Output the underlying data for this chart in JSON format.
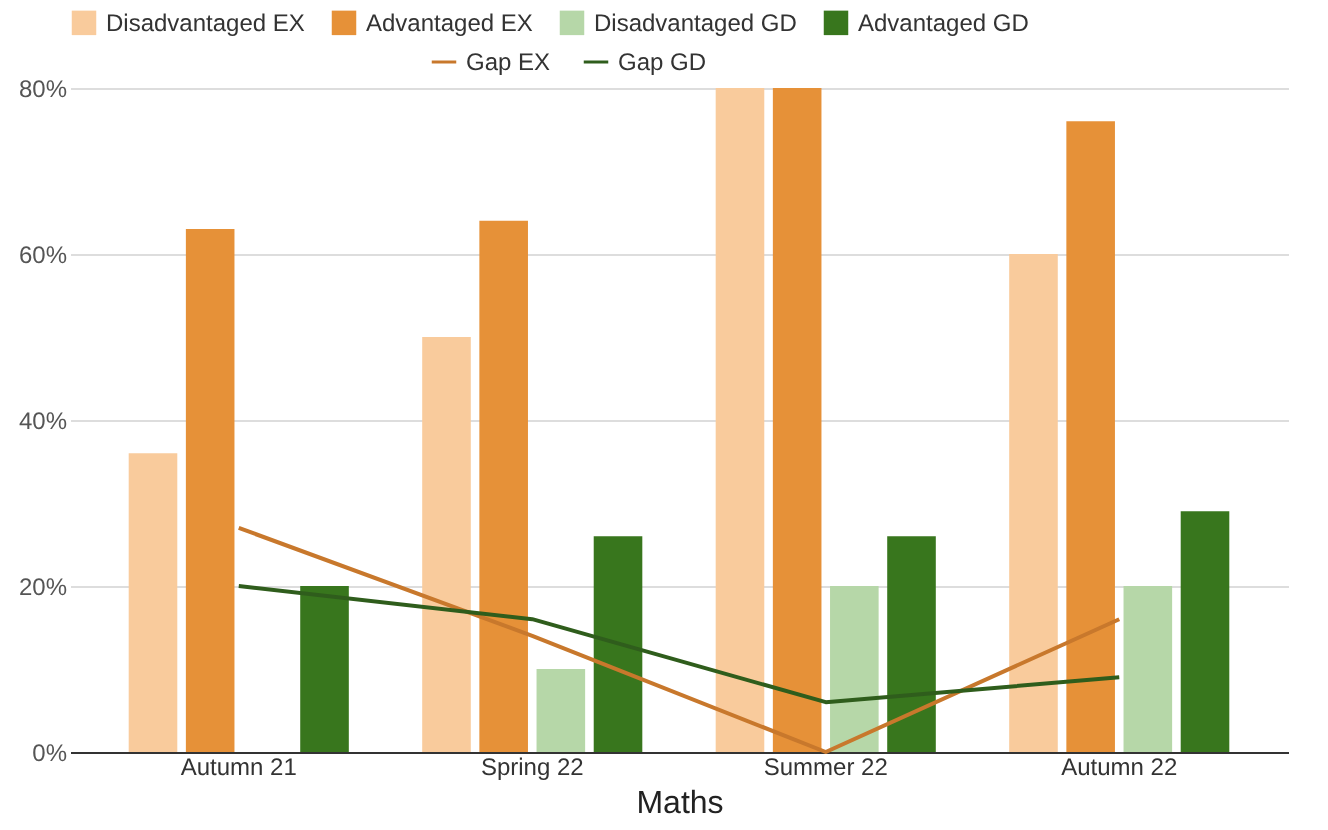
{
  "chart_data": {
    "type": "bar",
    "xlabel": "Maths",
    "categories": [
      "Autumn 21",
      "Spring 22",
      "Summer 22",
      "Autumn 22"
    ],
    "series": [
      {
        "name": "Disadvantaged EX",
        "color": "#f9cb9c",
        "values": [
          36,
          50,
          80,
          60
        ]
      },
      {
        "name": "Advantaged EX",
        "color": "#e69138",
        "values": [
          63,
          64,
          80,
          76
        ]
      },
      {
        "name": "Disadvantaged GD",
        "color": "#b6d7a8",
        "values": [
          0,
          10,
          20,
          20
        ]
      },
      {
        "name": "Advantaged GD",
        "color": "#38761d",
        "values": [
          20,
          26,
          26,
          29
        ]
      },
      {
        "name": "Gap EX",
        "type": "line",
        "color": "#c8782c",
        "values": [
          27,
          14,
          0,
          16
        ]
      },
      {
        "name": "Gap GD",
        "type": "line",
        "color": "#2f5d1c",
        "values": [
          20,
          16,
          6,
          9
        ]
      }
    ],
    "ylim": [
      0,
      80
    ],
    "yticks": [
      {
        "value": 0,
        "label": "0%"
      },
      {
        "value": 20,
        "label": "20%"
      },
      {
        "value": 40,
        "label": "40%"
      },
      {
        "value": 60,
        "label": "60%"
      },
      {
        "value": 80,
        "label": "80%"
      }
    ],
    "grid": "y",
    "legend": "top",
    "marker": "none",
    "line_style": "solid"
  }
}
